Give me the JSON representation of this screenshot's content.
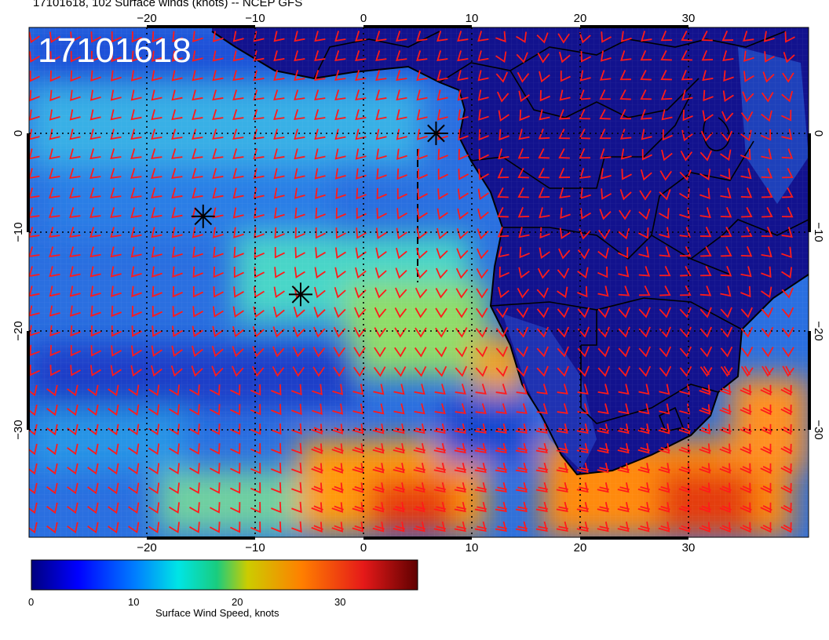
{
  "title": "17101618, 102 Surface winds (knots) -- NCEP GFS",
  "run_stamp": "17101618",
  "map": {
    "lon_ticks": [
      "−20",
      "−10",
      "0",
      "10",
      "20",
      "30"
    ],
    "lat_ticks": [
      "0",
      "−10",
      "−20",
      "−30"
    ],
    "wind_barb_color": "#ff1a1a",
    "coastline_color": "#000000",
    "markers": [
      {
        "name": "asterisk-marker",
        "lon": -14.8,
        "lat": -8.4
      },
      {
        "name": "asterisk-marker",
        "lon": -5.8,
        "lat": -16.3
      },
      {
        "name": "asterisk-marker",
        "lon": 6.7,
        "lat": 0.0
      }
    ]
  },
  "colorbar": {
    "title": "Surface Wind Speed, knots",
    "labels": [
      "0",
      "10",
      "20",
      "30"
    ],
    "stops": [
      "#00007f",
      "#0000ff",
      "#007fff",
      "#00e5e5",
      "#19cc7f",
      "#cccc00",
      "#ff7f00",
      "#e51919",
      "#7f0000"
    ]
  }
}
